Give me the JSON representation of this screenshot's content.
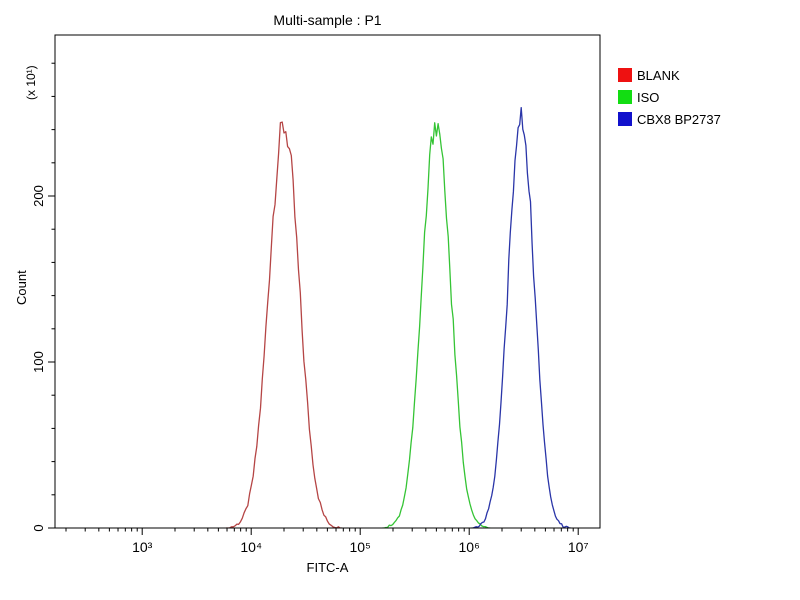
{
  "chart_data": {
    "type": "line",
    "title": "Multi-sample : P1",
    "xlabel": "FITC-A",
    "ylabel": "Count",
    "y_unit_label": "(x 10¹)",
    "x_scale": "log",
    "x_range_log10": [
      2.2,
      7.2
    ],
    "x_ticks": [
      {
        "log10": 3,
        "label": "10³"
      },
      {
        "log10": 4,
        "label": "10⁴"
      },
      {
        "log10": 5,
        "label": "10⁵"
      },
      {
        "log10": 6,
        "label": "10⁶"
      },
      {
        "log10": 7,
        "label": "10⁷"
      }
    ],
    "y_max": 297,
    "y_ticks": [
      {
        "value": 0,
        "label": "0"
      },
      {
        "value": 100,
        "label": "100"
      },
      {
        "value": 200,
        "label": "200"
      }
    ],
    "y_minor_step": 20,
    "grid": false,
    "legend_position": "right",
    "series": [
      {
        "name": "BLANK",
        "swatch_color": "#ee1111",
        "color": "#b54545",
        "peak_x": 20000,
        "peak_count": 242,
        "sigma_log10": 0.14
      },
      {
        "name": "ISO",
        "swatch_color": "#12dd12",
        "color": "#35c435",
        "peak_x": 500000,
        "peak_count": 245,
        "sigma_log10": 0.13
      },
      {
        "name": "CBX8 BP2737",
        "swatch_color": "#1111cc",
        "color": "#2a35a8",
        "peak_x": 3000000,
        "peak_count": 246,
        "sigma_log10": 0.12
      }
    ]
  }
}
